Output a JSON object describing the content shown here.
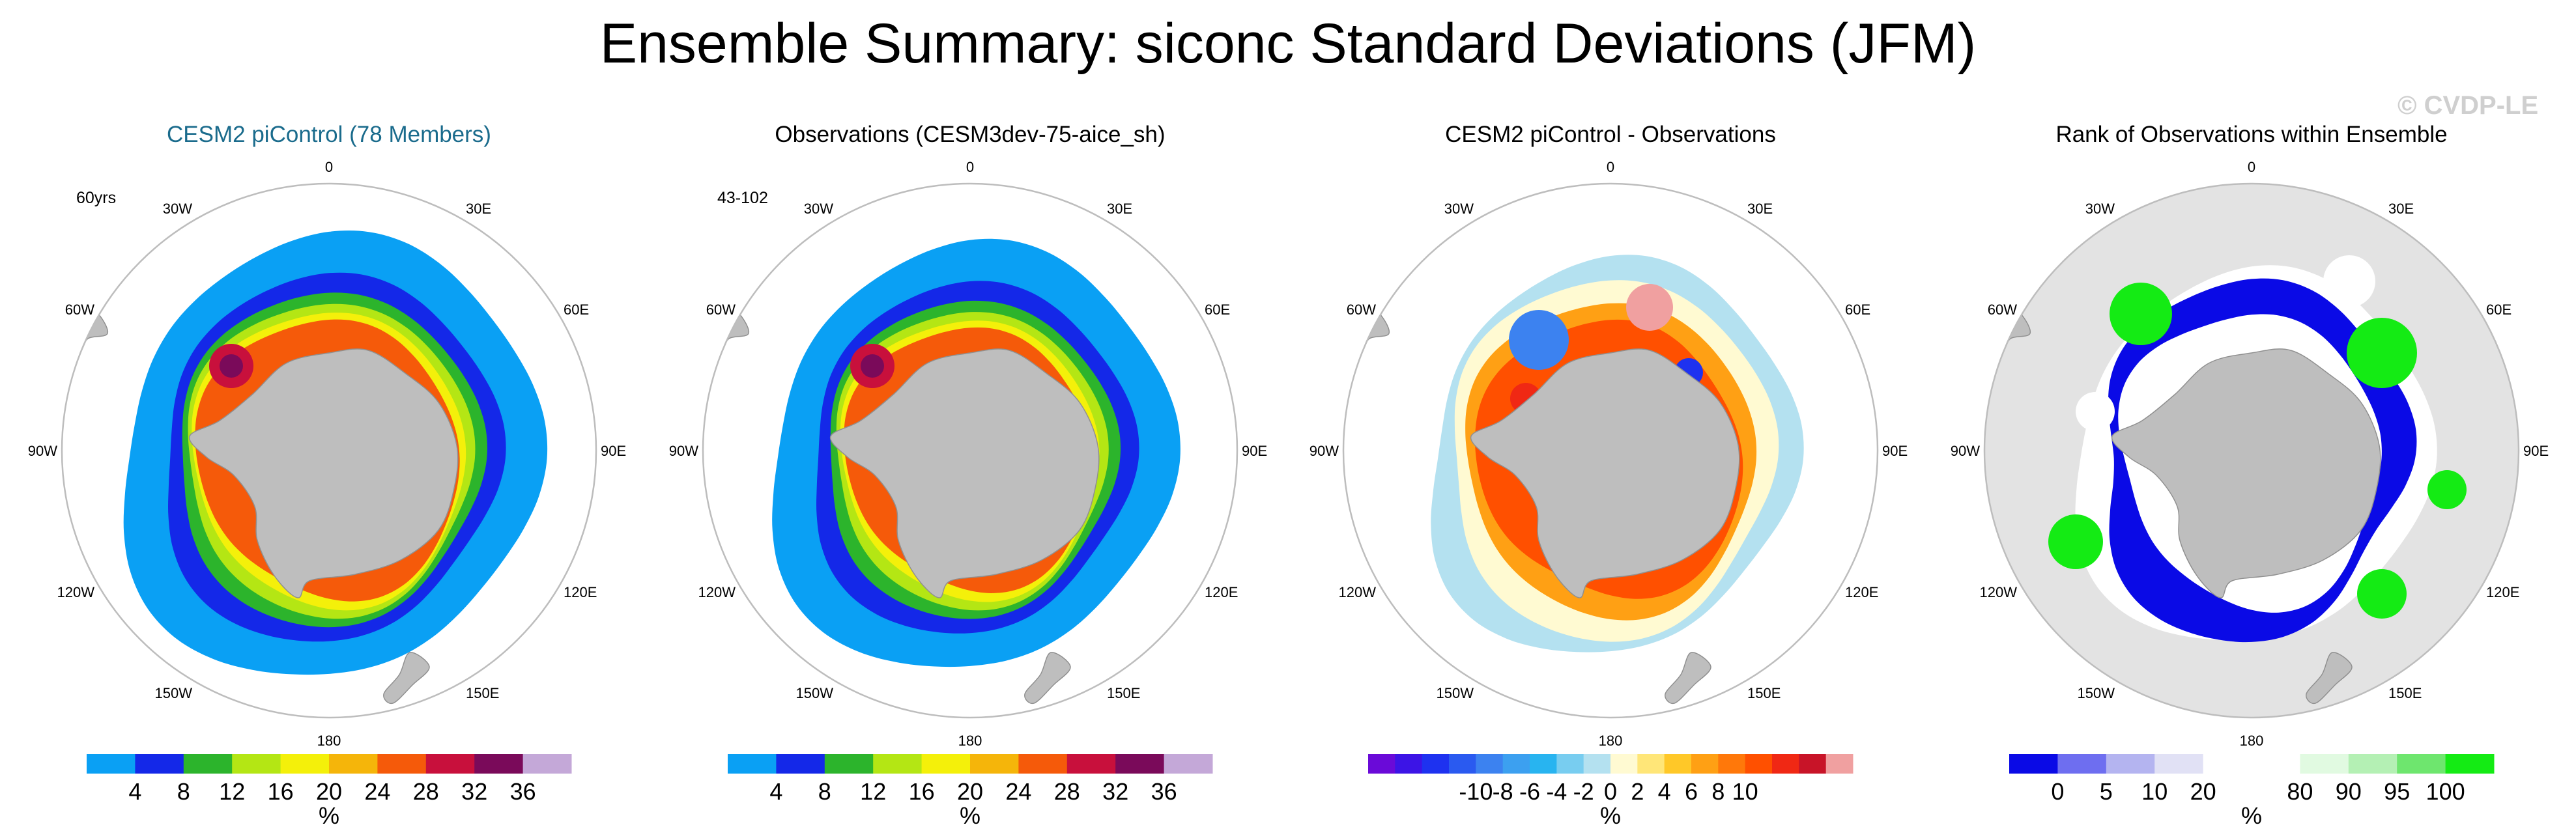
{
  "figure": {
    "title": "Ensemble Summary: siconc Standard Deviations (JFM)",
    "watermark": "© CVDP-LE"
  },
  "colors": {
    "land": "#bebebe",
    "coast": "#909090",
    "circle": "#bdbdbd",
    "panel1_title": "#1a6b8c",
    "ocean_rank": "#e3e3e3"
  },
  "chart_data": [
    {
      "type": "heatmap",
      "title": "CESM2 piControl (78 Members)",
      "note": "60yrs",
      "projection": "south polar stereographic",
      "longitude_labels": [
        "0",
        "30E",
        "60E",
        "90E",
        "120E",
        "150E",
        "180",
        "150W",
        "120W",
        "90W",
        "60W",
        "30W"
      ],
      "colorbar": {
        "levels": [
          "4",
          "8",
          "12",
          "16",
          "20",
          "24",
          "28",
          "32",
          "36"
        ],
        "colors": [
          "#0aa0f4",
          "#1428e8",
          "#2cb42c",
          "#b4e614",
          "#f4f00a",
          "#f5b50a",
          "#f55a0a",
          "#c8103c",
          "#7a0a5a",
          "#c4a8d8"
        ],
        "units": "%"
      }
    },
    {
      "type": "heatmap",
      "title": "Observations (CESM3dev-75-aice_sh)",
      "note": "43-102",
      "projection": "south polar stereographic",
      "longitude_labels": [
        "0",
        "30E",
        "60E",
        "90E",
        "120E",
        "150E",
        "180",
        "150W",
        "120W",
        "90W",
        "60W",
        "30W"
      ],
      "colorbar": {
        "levels": [
          "4",
          "8",
          "12",
          "16",
          "20",
          "24",
          "28",
          "32",
          "36"
        ],
        "colors": [
          "#0aa0f4",
          "#1428e8",
          "#2cb42c",
          "#b4e614",
          "#f4f00a",
          "#f5b50a",
          "#f55a0a",
          "#c8103c",
          "#7a0a5a",
          "#c4a8d8"
        ],
        "units": "%"
      }
    },
    {
      "type": "heatmap",
      "title": "CESM2 piControl - Observations",
      "note": "",
      "projection": "south polar stereographic",
      "longitude_labels": [
        "0",
        "30E",
        "60E",
        "90E",
        "120E",
        "150E",
        "180",
        "150W",
        "120W",
        "90W",
        "60W",
        "30W"
      ],
      "colorbar": {
        "levels": [
          "-10",
          "-8",
          "-6",
          "-4",
          "-2",
          "0",
          "2",
          "4",
          "6",
          "8",
          "10"
        ],
        "colors": [
          "#6a0ad8",
          "#3c14e6",
          "#1e32f0",
          "#2a5af0",
          "#3c82f0",
          "#3ca0f0",
          "#28b4f0",
          "#78cdf0",
          "#b4e1f0",
          "#fffad2",
          "#ffe678",
          "#ffc828",
          "#ffa014",
          "#ff780a",
          "#ff5000",
          "#f02814",
          "#c81428",
          "#f0a0a0"
        ],
        "units": "%"
      }
    },
    {
      "type": "heatmap",
      "title": "Rank of Observations within Ensemble",
      "note": "",
      "projection": "south polar stereographic",
      "longitude_labels": [
        "0",
        "30E",
        "60E",
        "90E",
        "120E",
        "150E",
        "180",
        "150W",
        "120W",
        "90W",
        "60W",
        "30W"
      ],
      "colorbar": {
        "levels": [
          "0",
          "5",
          "10",
          "20",
          "80",
          "90",
          "95",
          "100"
        ],
        "colors": [
          "#0a0ae6",
          "#6e6ef0",
          "#b4b4f0",
          "#e1e1f5",
          "#ffffff",
          "#ffffff",
          "#e1fae1",
          "#b4f0b4",
          "#6ee66e",
          "#14eb14"
        ],
        "units": "%"
      }
    }
  ]
}
